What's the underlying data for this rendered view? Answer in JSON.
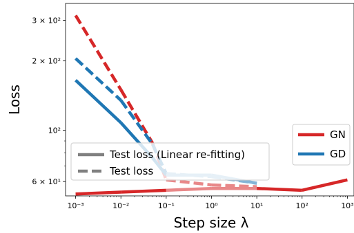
{
  "chart_data": {
    "type": "line",
    "xlabel": "Step size λ",
    "ylabel": "Loss",
    "xscale": "log",
    "yscale": "log",
    "xlim": [
      0.0006,
      1400
    ],
    "ylim": [
      52,
      355
    ],
    "x": [
      0.001,
      0.01,
      0.1,
      1,
      10,
      100,
      1000
    ],
    "x_tick_labels": [
      "10⁻³",
      "10⁻²",
      "10⁻¹",
      "10⁰",
      "10¹",
      "10²",
      "10³"
    ],
    "y_ticks": [
      {
        "value": 60,
        "label": "6 × 10¹"
      },
      {
        "value": 100,
        "label": "10²"
      },
      {
        "value": 200,
        "label": "2 × 10²"
      },
      {
        "value": 300,
        "label": "3 × 10²"
      }
    ],
    "series": [
      {
        "name": "GN",
        "metric": "Test loss",
        "color": "#d62728",
        "x": [
          0.001,
          0.01,
          0.05,
          0.1,
          1,
          10
        ],
        "y": [
          315,
          150,
          88,
          61,
          58,
          57
        ]
      },
      {
        "name": "GD",
        "metric": "Test loss",
        "color": "#1f77b4",
        "x": [
          0.001,
          0.01,
          0.05,
          0.1,
          1,
          10
        ],
        "y": [
          205,
          135,
          87,
          65,
          63,
          59
        ]
      },
      {
        "name": "GD",
        "metric": "Test loss (Linear re-fitting)",
        "color": "#1f77b4",
        "x": [
          0.001,
          0.01,
          0.05,
          0.1,
          1,
          10
        ],
        "y": [
          165,
          108,
          76,
          64,
          64,
          59
        ]
      },
      {
        "name": "GN",
        "metric": "Test loss (Linear re-fitting)",
        "color": "#d62728",
        "x": [
          0.001,
          0.01,
          0.1,
          1,
          10,
          100,
          1000
        ],
        "y": [
          53,
          54,
          55,
          56,
          56,
          55,
          61
        ]
      }
    ],
    "legend_style": {
      "position": "center-left",
      "entries": [
        {
          "label": "Test loss (Linear re-fitting)",
          "style": "solid",
          "color": "#808080"
        },
        {
          "label": "Test loss",
          "style": "dashed",
          "color": "#808080"
        }
      ]
    },
    "legend_method": {
      "position": "center-right",
      "entries": [
        {
          "label": "GN",
          "color": "#d62728"
        },
        {
          "label": "GD",
          "color": "#1f77b4"
        }
      ]
    }
  }
}
